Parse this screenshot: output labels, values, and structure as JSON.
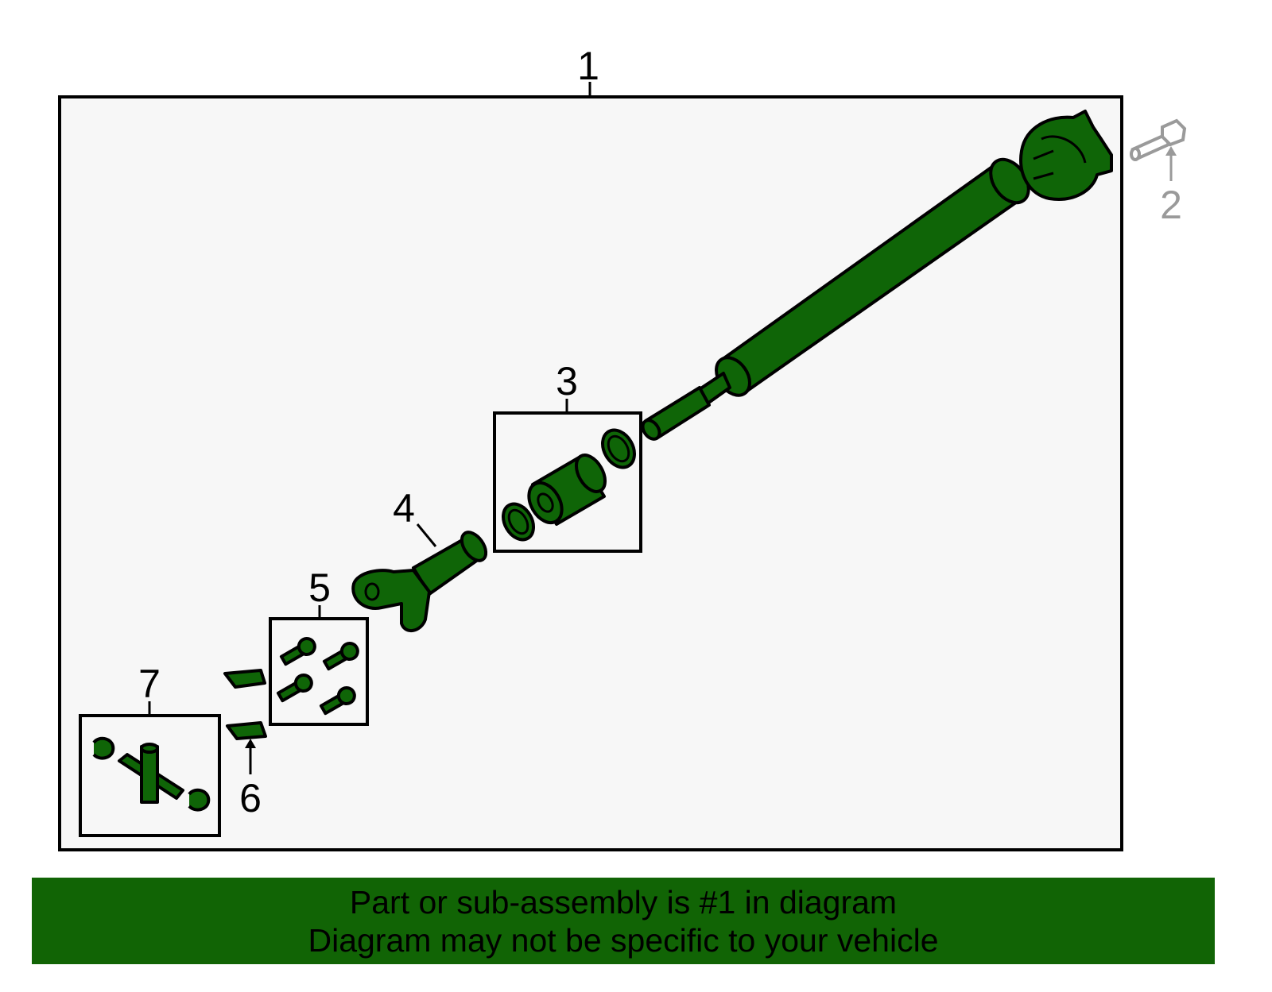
{
  "diagram": {
    "callouts": {
      "c1": "1",
      "c2": "2",
      "c3": "3",
      "c4": "4",
      "c5": "5",
      "c6": "6",
      "c7": "7"
    },
    "colors": {
      "part_fill": "#0f6507",
      "background_box": "#f7f7f7",
      "accessory_gray": "#9a9a9a",
      "banner": "#116405"
    }
  },
  "banner": {
    "line1": "Part or sub-assembly is #1 in diagram",
    "line2": "Diagram may not be specific to your vehicle"
  }
}
